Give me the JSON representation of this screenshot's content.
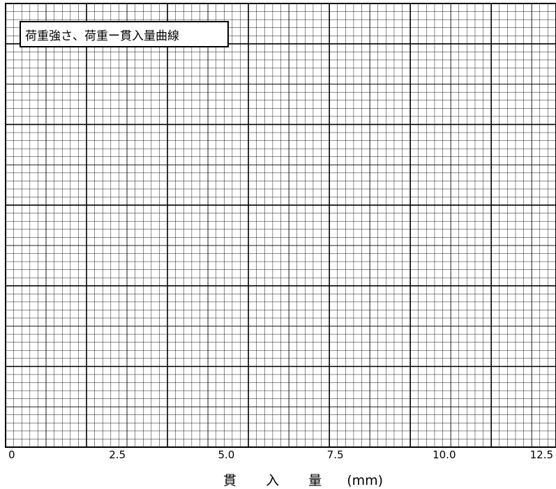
{
  "chart_data": {
    "type": "line",
    "title": "荷重強さ、荷重ー貫入量曲線",
    "xlabel": "貫 入 量 (mm)",
    "xlabel_parts": [
      "貫",
      "入",
      "量",
      "(mm)"
    ],
    "ylabel": "",
    "x_ticks": [
      "0",
      "2.5",
      "5.0",
      "7.5",
      "10.0",
      "12.5"
    ],
    "x_tick_values": [
      0,
      2.5,
      5.0,
      7.5,
      10.0,
      12.5
    ],
    "xlim": [
      0,
      12.5
    ],
    "grid": true,
    "series": []
  }
}
